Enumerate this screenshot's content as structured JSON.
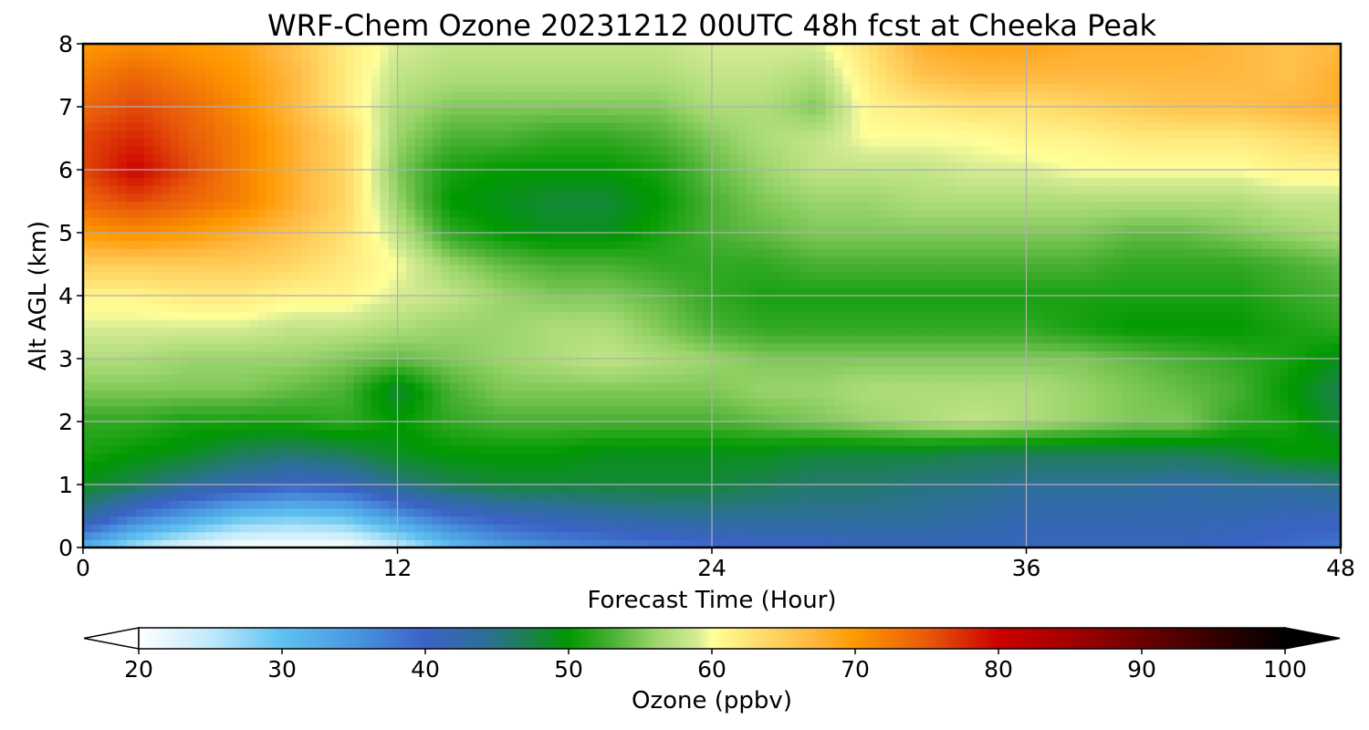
{
  "chart_data": {
    "type": "heatmap",
    "title": "WRF-Chem Ozone  20231212 00UTC 48h fcst at Cheeka Peak",
    "xlabel": "Forecast Time (Hour)",
    "ylabel": "Alt AGL (km)",
    "xlim": [
      0,
      48
    ],
    "ylim": [
      0,
      8
    ],
    "x_ticks": [
      0,
      12,
      24,
      36,
      48
    ],
    "y_ticks": [
      0,
      1,
      2,
      3,
      4,
      5,
      6,
      7,
      8
    ],
    "grid": true,
    "x": [
      0,
      2,
      4,
      6,
      8,
      10,
      12,
      14,
      16,
      18,
      20,
      22,
      24,
      26,
      28,
      30,
      32,
      34,
      36,
      38,
      40,
      42,
      44,
      46,
      48
    ],
    "y": [
      0,
      0.5,
      1,
      1.5,
      2,
      2.5,
      3,
      3.5,
      4,
      4.5,
      5,
      5.5,
      6,
      6.5,
      7,
      7.5,
      8
    ],
    "z": [
      [
        32,
        26,
        22,
        20,
        20,
        20,
        24,
        30,
        34,
        36,
        37,
        38,
        39,
        40,
        40,
        41,
        41,
        41,
        41,
        41,
        41,
        41,
        40,
        39,
        38
      ],
      [
        44,
        38,
        34,
        30,
        29,
        30,
        35,
        39,
        41,
        42,
        43,
        44,
        44,
        44,
        44,
        44,
        44,
        43,
        42,
        42,
        42,
        42,
        42,
        41,
        41
      ],
      [
        49,
        47,
        44,
        42,
        40,
        41,
        45,
        47,
        48,
        48,
        48,
        48,
        48,
        47,
        46,
        46,
        45,
        45,
        44,
        44,
        44,
        43,
        44,
        44,
        45
      ],
      [
        51,
        50,
        49,
        47,
        46,
        47,
        49,
        50,
        50,
        50,
        49,
        49,
        49,
        49,
        48,
        48,
        48,
        47,
        47,
        47,
        47,
        47,
        48,
        50,
        50
      ],
      [
        52,
        52,
        51,
        51,
        51,
        52,
        50,
        52,
        53,
        53,
        53,
        53,
        53,
        54,
        55,
        56,
        57,
        58,
        57,
        56,
        55,
        55,
        52,
        51,
        48
      ],
      [
        55,
        55,
        55,
        55,
        54,
        53,
        48,
        53,
        55,
        55,
        55,
        55,
        55,
        56,
        56,
        57,
        57,
        57,
        57,
        56,
        55,
        54,
        53,
        50,
        47
      ],
      [
        57,
        57,
        56,
        56,
        56,
        55,
        54,
        55,
        56,
        57,
        58,
        57,
        56,
        55,
        55,
        55,
        55,
        55,
        55,
        55,
        54,
        53,
        52,
        51,
        49
      ],
      [
        59,
        59,
        59,
        59,
        58,
        58,
        57,
        56,
        56,
        57,
        57,
        55,
        53,
        52,
        52,
        52,
        52,
        52,
        52,
        51,
        50,
        50,
        50,
        51,
        52
      ],
      [
        61,
        61,
        62,
        62,
        61,
        61,
        59,
        58,
        56,
        55,
        55,
        54,
        52,
        51,
        51,
        51,
        51,
        51,
        51,
        51,
        51,
        51,
        51,
        52,
        53
      ],
      [
        65,
        65,
        65,
        65,
        64,
        62,
        60,
        56,
        54,
        53,
        53,
        52,
        52,
        52,
        53,
        53,
        53,
        53,
        53,
        53,
        52,
        52,
        52,
        53,
        54
      ],
      [
        70,
        71,
        70,
        68,
        66,
        63,
        58,
        52,
        50,
        49,
        49,
        51,
        53,
        54,
        55,
        55,
        55,
        55,
        55,
        55,
        54,
        54,
        55,
        56,
        57
      ],
      [
        74,
        76,
        74,
        72,
        68,
        64,
        56,
        50,
        49,
        48,
        48,
        50,
        53,
        55,
        56,
        56,
        57,
        57,
        57,
        57,
        57,
        57,
        57,
        58,
        58
      ],
      [
        76,
        80,
        76,
        72,
        68,
        64,
        55,
        51,
        50,
        50,
        50,
        51,
        54,
        56,
        58,
        58,
        58,
        59,
        59,
        60,
        60,
        60,
        60,
        61,
        61
      ],
      [
        76,
        78,
        75,
        72,
        68,
        64,
        56,
        53,
        53,
        52,
        52,
        53,
        55,
        57,
        58,
        60,
        60,
        60,
        61,
        61,
        62,
        62,
        62,
        63,
        64
      ],
      [
        74,
        76,
        74,
        71,
        67,
        62,
        57,
        55,
        55,
        55,
        55,
        55,
        57,
        57,
        55,
        61,
        62,
        63,
        63,
        64,
        65,
        66,
        66,
        67,
        68
      ],
      [
        72,
        74,
        72,
        70,
        67,
        62,
        58,
        57,
        57,
        57,
        57,
        57,
        58,
        58,
        57,
        62,
        66,
        67,
        67,
        67,
        67,
        67,
        67,
        66,
        68
      ],
      [
        70,
        71,
        70,
        69,
        66,
        62,
        59,
        58,
        58,
        58,
        58,
        58,
        59,
        59,
        59,
        63,
        68,
        69,
        69,
        68,
        68,
        68,
        67,
        66,
        67
      ]
    ],
    "colorbar": {
      "label": "Ozone  (ppbv)",
      "min": 20,
      "max": 100,
      "ticks": [
        20,
        30,
        40,
        50,
        60,
        70,
        80,
        90,
        100
      ],
      "extend": "both",
      "stops": [
        {
          "v": 20,
          "c": "#ffffff"
        },
        {
          "v": 25,
          "c": "#bfe9fb"
        },
        {
          "v": 30,
          "c": "#5ec1f0"
        },
        {
          "v": 35,
          "c": "#4a97e0"
        },
        {
          "v": 40,
          "c": "#3b62c6"
        },
        {
          "v": 44,
          "c": "#2d6f9a"
        },
        {
          "v": 47,
          "c": "#1d7f55"
        },
        {
          "v": 50,
          "c": "#009900"
        },
        {
          "v": 53,
          "c": "#49b034"
        },
        {
          "v": 56,
          "c": "#9bd56b"
        },
        {
          "v": 59,
          "c": "#d6ec94"
        },
        {
          "v": 60,
          "c": "#ffff99"
        },
        {
          "v": 63,
          "c": "#ffe070"
        },
        {
          "v": 67,
          "c": "#ffb840"
        },
        {
          "v": 70,
          "c": "#ff9900"
        },
        {
          "v": 75,
          "c": "#e85a0a"
        },
        {
          "v": 80,
          "c": "#cc0000"
        },
        {
          "v": 85,
          "c": "#a30000"
        },
        {
          "v": 90,
          "c": "#6d0000"
        },
        {
          "v": 95,
          "c": "#350000"
        },
        {
          "v": 100,
          "c": "#000000"
        }
      ]
    }
  }
}
